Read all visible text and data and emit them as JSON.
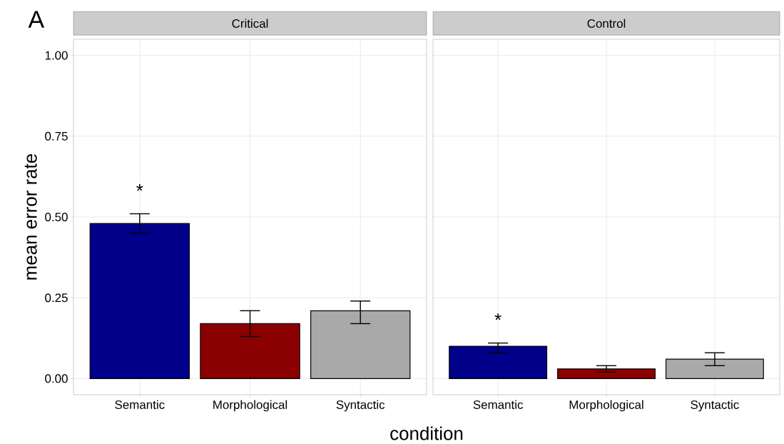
{
  "chart_data": [
    {
      "type": "bar",
      "title": "Critical",
      "ylabel": "mean error rate",
      "xlabel": "condition",
      "categories": [
        "Semantic",
        "Morphological",
        "Syntactic"
      ],
      "values": [
        0.48,
        0.17,
        0.21
      ],
      "errors": [
        [
          0.45,
          0.51
        ],
        [
          0.13,
          0.21
        ],
        [
          0.17,
          0.24
        ]
      ],
      "colors": [
        "#00008b",
        "#8b0000",
        "#a9a9a9"
      ],
      "ylim": [
        -0.05,
        1.05
      ],
      "yticks": [
        {
          "value": 0,
          "label": "0.00"
        },
        {
          "value": 0.25,
          "label": "0.25"
        },
        {
          "value": 0.5,
          "label": "0.50"
        },
        {
          "value": 0.75,
          "label": "0.75"
        },
        {
          "value": 1,
          "label": "1.00"
        }
      ],
      "grid": true,
      "annotations": [
        "A",
        "*"
      ]
    },
    {
      "type": "bar",
      "title": "Control",
      "categories": [
        "Semantic",
        "Morphological",
        "Syntactic"
      ],
      "values": [
        0.1,
        0.03,
        0.06
      ],
      "errors": [
        [
          0.08,
          0.11
        ],
        [
          0.02,
          0.04
        ],
        [
          0.04,
          0.08
        ]
      ],
      "colors": [
        "#00008b",
        "#8b0000",
        "#a9a9a9"
      ],
      "ylim": [
        -0.05,
        1.05
      ],
      "yticks": [
        0,
        0.25,
        0.5,
        0.75,
        1
      ],
      "grid": true,
      "tick_labels": "x",
      "annotations": [
        "*"
      ]
    }
  ]
}
